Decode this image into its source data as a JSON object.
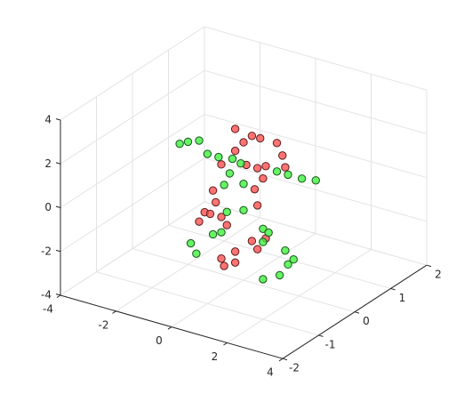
{
  "chart_data": {
    "type": "scatter3d",
    "xlim": [
      -4,
      4
    ],
    "ylim": [
      -2,
      2
    ],
    "zlim": [
      -4,
      4
    ],
    "xticks": [
      -4,
      -2,
      0,
      2,
      4
    ],
    "yticks": [
      -2,
      -1,
      0,
      1,
      2
    ],
    "zticks": [
      -4,
      -2,
      0,
      2,
      4
    ],
    "grid": true,
    "series": [
      {
        "color": "#ff5050",
        "x": [
          -0.3,
          0.3,
          0.6,
          0.0,
          1.2,
          1.4,
          1.5,
          0.8,
          0.5,
          -0.3,
          -0.8,
          0.1,
          0.7,
          0.4,
          0.5,
          -1.1,
          -1.0,
          -1.4,
          -0.8,
          -1.6,
          -0.6,
          0.3,
          0.8,
          0.5,
          -0.3,
          -0.3,
          -0.8,
          -0.7,
          -1.2
        ],
        "y": [
          0,
          0,
          0,
          0,
          0,
          0,
          0,
          0,
          0,
          0,
          0,
          0,
          0,
          0,
          0,
          0,
          0,
          0,
          0,
          0,
          0,
          0,
          0,
          0,
          0,
          0,
          0,
          0,
          0
        ],
        "z": [
          2.8,
          2.7,
          2.7,
          2.3,
          2.7,
          2.2,
          1.7,
          1.5,
          1.3,
          1.8,
          1.0,
          1.3,
          0.9,
          0.3,
          -0.4,
          -0.3,
          -0.8,
          -1.4,
          -1.4,
          -1.9,
          -1.7,
          -2.1,
          -1.8,
          -2.4,
          -2.8,
          -3.3,
          -3.3,
          -3.6,
          -1.4
        ]
      },
      {
        "color": "#40f040",
        "x": [
          -2.3,
          -2.0,
          -1.6,
          -1.3,
          -0.9,
          -0.4,
          -0.1,
          1.2,
          1.6,
          2.1,
          2.6,
          -0.7,
          0.0,
          -0.5,
          -0.6,
          0.0,
          -0.8,
          -1.1,
          -1.9,
          -1.7,
          0.7,
          0.9,
          0.7,
          1.5,
          1.8,
          1.6,
          1.3,
          0.7
        ],
        "y": [
          0,
          0,
          0,
          0,
          0,
          0,
          0,
          0,
          0,
          0,
          0,
          0,
          0,
          0,
          0,
          0,
          0,
          0,
          0,
          0,
          0,
          0,
          0,
          0,
          0,
          0,
          0,
          0
        ],
        "z": [
          1.4,
          1.6,
          1.8,
          1.3,
          1.3,
          1.4,
          1.3,
          1.4,
          1.4,
          1.4,
          1.5,
          0.1,
          0.4,
          0.7,
          -1.1,
          -0.8,
          -2.1,
          -2.3,
          -3.0,
          -3.4,
          -1.4,
          -1.5,
          -2.0,
          -2.1,
          -2.4,
          -2.7,
          -3.3,
          -3.7
        ]
      }
    ]
  }
}
